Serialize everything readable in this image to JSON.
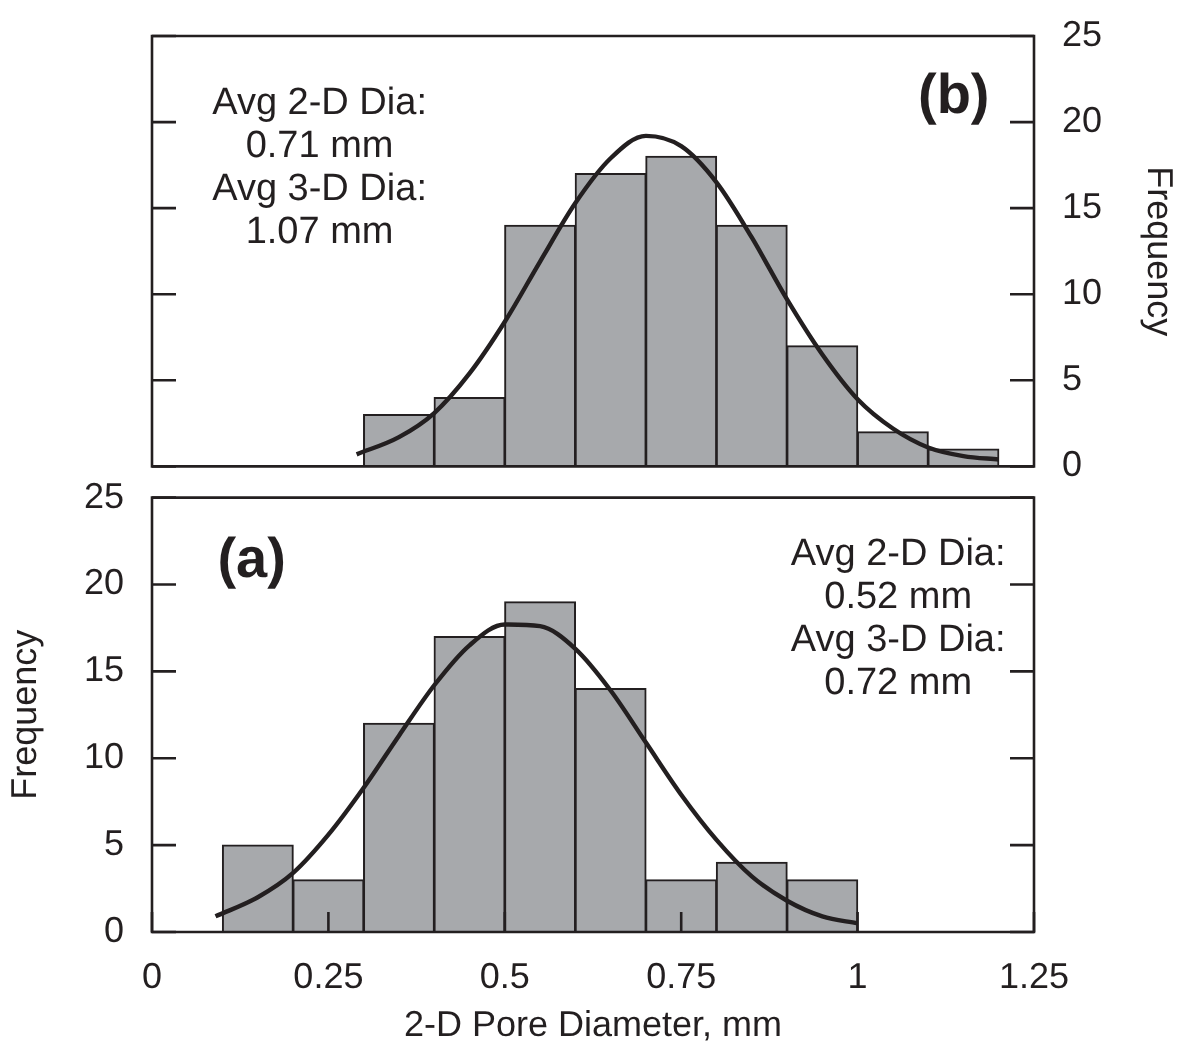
{
  "chart_data": [
    {
      "type": "histogram",
      "ylabel": "Frequency",
      "xlim": [
        0,
        1.25
      ],
      "xticks": [
        0,
        0.25,
        0.5,
        0.75,
        1,
        1.25
      ],
      "ylim": [
        0,
        25
      ],
      "yticks": [
        0,
        5,
        10,
        15,
        20,
        25
      ],
      "tick_labels": "y",
      "annotations": [
        "(b)",
        "Avg 2-D Dia:\n0.71 mm\nAvg 3-D Dia:\n1.07 mm"
      ],
      "series": [
        {
          "type": "histogram",
          "color": "#a7a9ac",
          "bins": [
            0.3,
            0.4,
            0.5,
            0.6,
            0.7,
            0.8,
            0.9,
            1.0,
            1.1,
            1.2
          ],
          "values": [
            3,
            4,
            14,
            17,
            18,
            14,
            7,
            2,
            1
          ]
        },
        {
          "type": "line",
          "color": "#231f20",
          "x": [
            0.29,
            0.35,
            0.4,
            0.45,
            0.5,
            0.55,
            0.6,
            0.65,
            0.7,
            0.75,
            0.8,
            0.85,
            0.9,
            0.95,
            1.0,
            1.05,
            1.1,
            1.15,
            1.2
          ],
          "values": [
            0.7,
            1.7,
            3.1,
            5.4,
            8.4,
            11.9,
            15.3,
            17.9,
            19.2,
            18.6,
            16.5,
            13.3,
            9.7,
            6.5,
            3.9,
            2.2,
            1.1,
            0.6,
            0.4
          ]
        }
      ]
    },
    {
      "type": "histogram",
      "xlabel": "2-D Pore Diameter, mm",
      "ylabel": "Frequency",
      "xlim": [
        0,
        1.25
      ],
      "xticks": [
        0,
        0.25,
        0.5,
        0.75,
        1,
        1.25
      ],
      "ylim": [
        0,
        25
      ],
      "yticks": [
        0,
        5,
        10,
        15,
        20,
        25
      ],
      "annotations": [
        "(a)",
        "Avg 2-D Dia:\n0.52 mm\nAvg 3-D Dia:\n0.72 mm"
      ],
      "series": [
        {
          "type": "histogram",
          "color": "#a7a9ac",
          "bins": [
            0.1,
            0.2,
            0.3,
            0.4,
            0.5,
            0.6,
            0.7,
            0.8,
            0.9,
            1.0
          ],
          "values": [
            5,
            3,
            12,
            17,
            19,
            14,
            3,
            4,
            3
          ]
        },
        {
          "type": "line",
          "color": "#231f20",
          "x": [
            0.09,
            0.15,
            0.2,
            0.25,
            0.3,
            0.35,
            0.4,
            0.45,
            0.5,
            0.55,
            0.6,
            0.65,
            0.7,
            0.75,
            0.8,
            0.85,
            0.9,
            0.95,
            1.0
          ],
          "values": [
            0.9,
            2.0,
            3.4,
            5.6,
            8.3,
            11.3,
            14.2,
            16.5,
            17.7,
            17.6,
            16.3,
            13.9,
            10.9,
            7.9,
            5.3,
            3.2,
            1.8,
            0.9,
            0.5
          ]
        }
      ]
    }
  ]
}
